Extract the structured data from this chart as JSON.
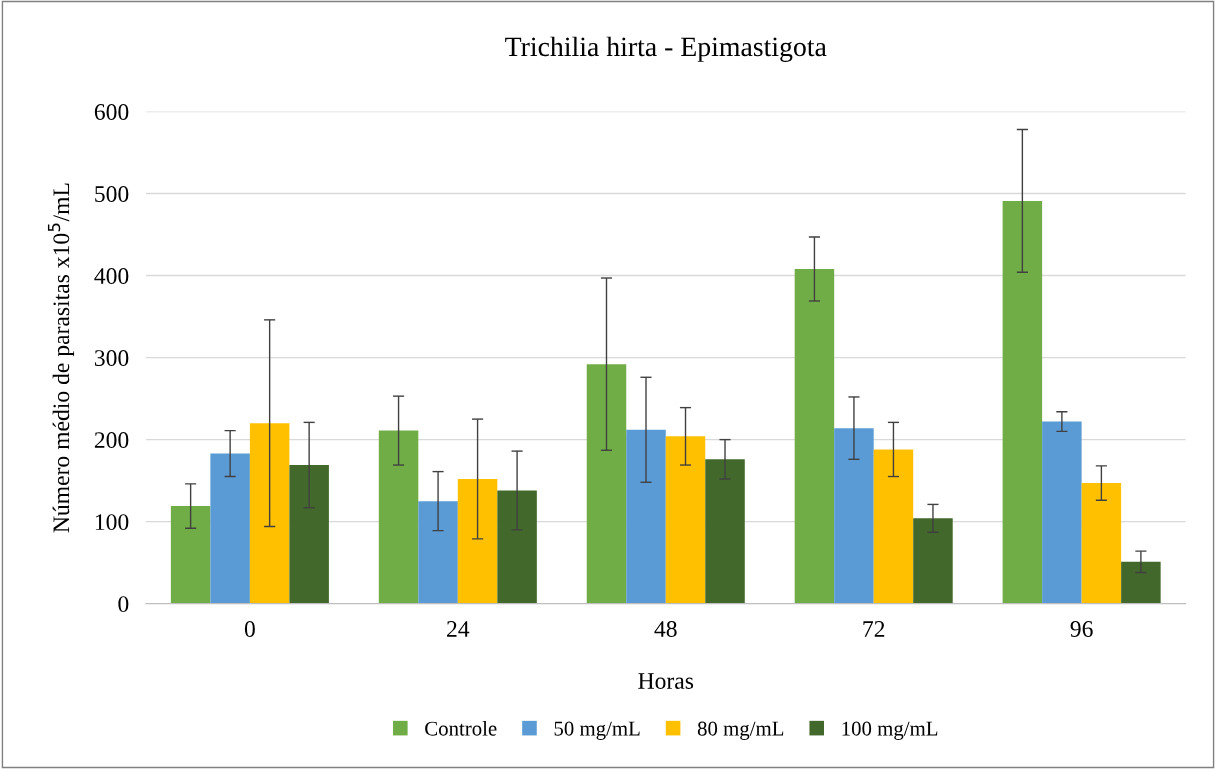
{
  "chart_data": {
    "type": "bar",
    "title": "Trichilia hirta - Epimastigota",
    "xlabel": "Horas",
    "ylabel": "Número médio de parasitas x10$^{5}$/mL",
    "categories": [
      "0",
      "24",
      "48",
      "72",
      "96"
    ],
    "series": [
      {
        "name": "Controle",
        "color": "#70ad47",
        "values": [
          119,
          211,
          292,
          408,
          491
        ],
        "errors": [
          27,
          42,
          105,
          39,
          87
        ]
      },
      {
        "name": "50 mg/mL",
        "color": "#5b9bd5",
        "values": [
          183,
          125,
          212,
          214,
          222
        ],
        "errors": [
          28,
          36,
          64,
          38,
          12
        ]
      },
      {
        "name": "80 mg/mL",
        "color": "#ffc000",
        "values": [
          220,
          152,
          204,
          188,
          147
        ],
        "errors": [
          126,
          73,
          35,
          33,
          21
        ]
      },
      {
        "name": "100 mg/mL",
        "color": "#43682b",
        "values": [
          169,
          138,
          176,
          104,
          51
        ],
        "errors": [
          52,
          48,
          24,
          17,
          13
        ]
      }
    ],
    "ylim": [
      0,
      600
    ],
    "yticks": [
      0,
      100,
      200,
      300,
      400,
      500,
      600
    ],
    "grid": "y",
    "legend": "bottom"
  }
}
